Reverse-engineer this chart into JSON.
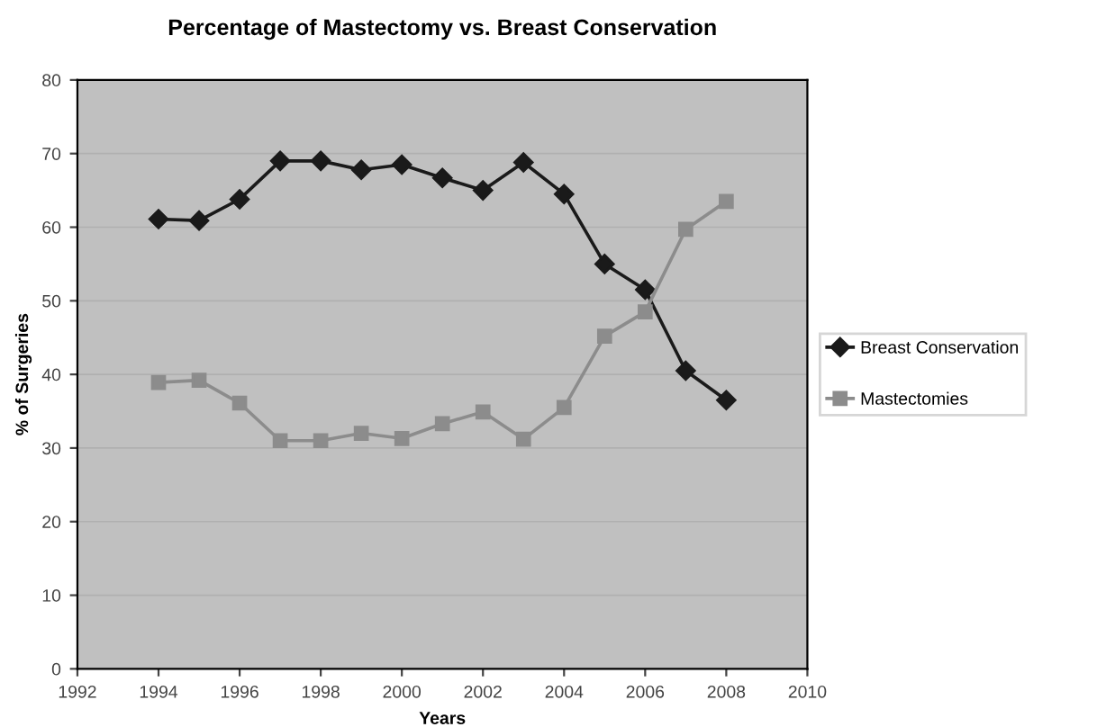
{
  "chart_data": {
    "type": "line",
    "title": "Percentage of Mastectomy vs. Breast Conservation",
    "xlabel": "Years",
    "ylabel": "% of Surgeries",
    "x": [
      1994,
      1995,
      1996,
      1997,
      1998,
      1999,
      2000,
      2001,
      2002,
      2003,
      2004,
      2005,
      2006,
      2007,
      2008
    ],
    "series": [
      {
        "name": "Breast Conservation",
        "color": "#1a1a1a",
        "marker": "diamond",
        "values": [
          61.1,
          60.9,
          63.8,
          69,
          69,
          67.8,
          68.5,
          66.7,
          65,
          68.8,
          64.5,
          55,
          51.5,
          40.5,
          36.5
        ]
      },
      {
        "name": "Mastectomies",
        "color": "#8c8c8c",
        "marker": "square",
        "values": [
          38.9,
          39.2,
          36.1,
          31,
          31,
          32,
          31.3,
          33.3,
          34.9,
          31.2,
          35.5,
          45.2,
          48.5,
          59.7,
          63.5
        ]
      }
    ],
    "xlim": [
      1992,
      2010
    ],
    "xticks": [
      1992,
      1994,
      1996,
      1998,
      2000,
      2002,
      2004,
      2006,
      2008,
      2010
    ],
    "ylim": [
      0,
      80
    ],
    "yticks": [
      0,
      10,
      20,
      30,
      40,
      50,
      60,
      70,
      80
    ],
    "grid": "y",
    "legend": "right",
    "line_style": "solid"
  }
}
